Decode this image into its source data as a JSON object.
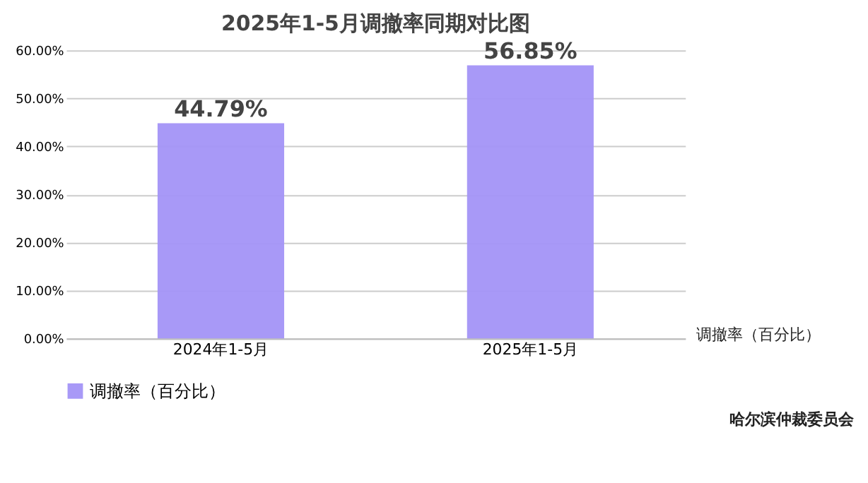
{
  "chart_data": {
    "type": "bar",
    "title": "2025年1-5月调撤率同期对比图",
    "categories": [
      "2024年1-5月",
      "2025年1-5月"
    ],
    "series": [
      {
        "name": "调撤率（百分比）",
        "color": "#a393f7",
        "values": [
          44.79,
          56.85
        ],
        "value_labels": [
          "44.79%",
          "56.85%"
        ]
      }
    ],
    "ylim": [
      0,
      60
    ],
    "yticks": [
      {
        "value": 0,
        "label": "0.00%"
      },
      {
        "value": 10,
        "label": "10.00%"
      },
      {
        "value": 20,
        "label": "20.00%"
      },
      {
        "value": 30,
        "label": "30.00%"
      },
      {
        "value": 40,
        "label": "40.00%"
      },
      {
        "value": 50,
        "label": "50.00%"
      },
      {
        "value": 60,
        "label": "60.00%"
      }
    ],
    "grid": "y",
    "legend": "bottom",
    "annotations": [
      "调撤率（百分比）",
      "哈尔滨仲裁委员会"
    ]
  }
}
